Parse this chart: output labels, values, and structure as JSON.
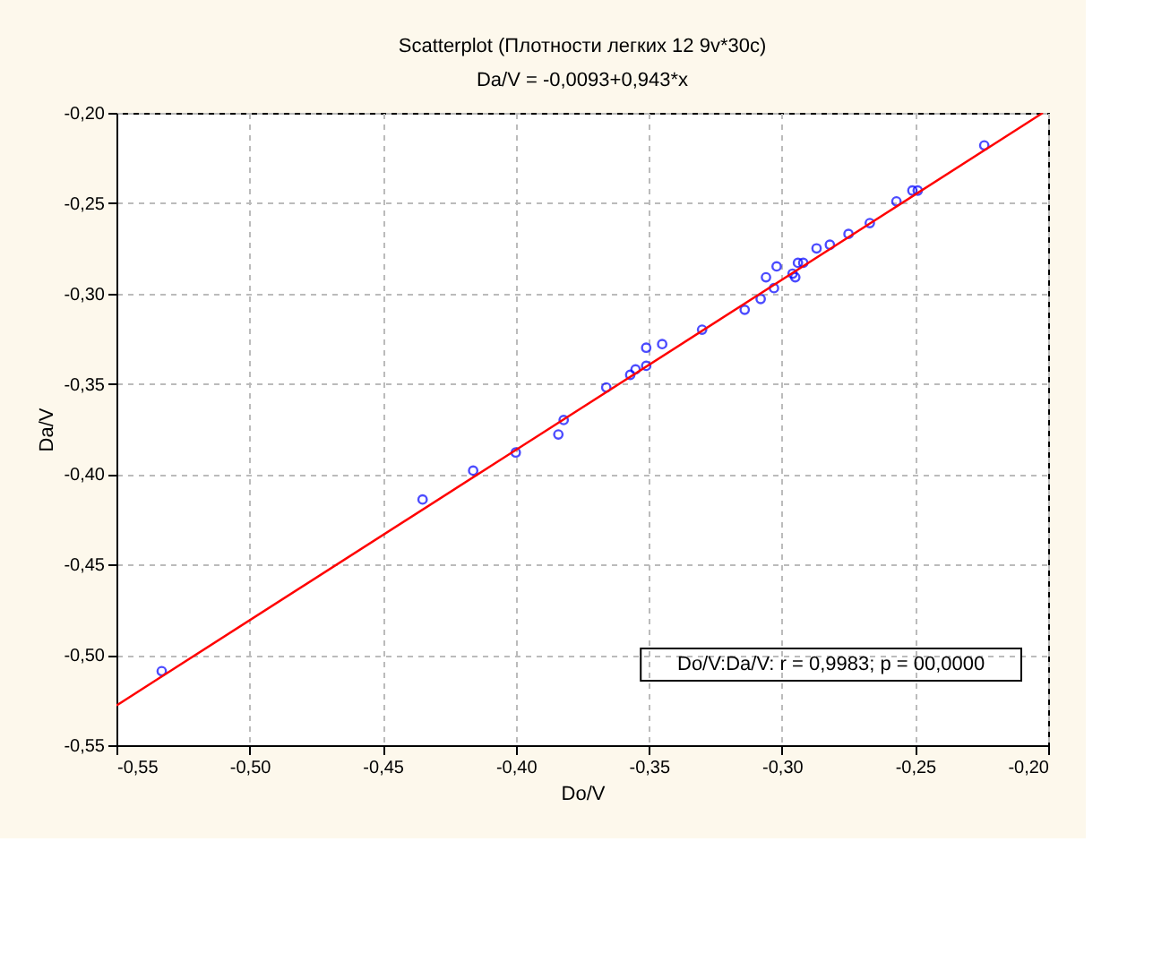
{
  "chart_data": {
    "type": "scatter",
    "title": "Scatterplot (Плотности легких 12 9v*30c)",
    "subtitle": "Da/V = -0,0093+0,943*x",
    "xlabel": "Do/V",
    "ylabel": "Da/V",
    "series": [
      {
        "color": "#0000ff",
        "marker": "circle",
        "x": [
          -0.224,
          -0.251,
          -0.249,
          -0.257,
          -0.267,
          -0.275,
          -0.282,
          -0.287,
          -0.292,
          -0.294,
          -0.296,
          -0.295,
          -0.302,
          -0.306,
          -0.303,
          -0.308,
          -0.314,
          -0.33,
          -0.345,
          -0.351,
          -0.351,
          -0.355,
          -0.357,
          -0.366,
          -0.382,
          -0.384,
          -0.4,
          -0.416,
          -0.435,
          -0.533
        ],
        "values": [
          -0.218,
          -0.243,
          -0.243,
          -0.249,
          -0.261,
          -0.267,
          -0.273,
          -0.275,
          -0.283,
          -0.283,
          -0.289,
          -0.291,
          -0.285,
          -0.291,
          -0.297,
          -0.303,
          -0.309,
          -0.32,
          -0.328,
          -0.33,
          -0.34,
          -0.342,
          -0.345,
          -0.352,
          -0.37,
          -0.378,
          -0.388,
          -0.398,
          -0.414,
          -0.509
        ]
      },
      {
        "type": "line",
        "color": "#ff0000",
        "line_style": "solid",
        "x": [
          -0.55,
          -0.202
        ],
        "values": [
          -0.528,
          -0.2
        ]
      }
    ],
    "xlim": [
      -0.55,
      -0.2
    ],
    "xticks": [
      {
        "value": -0.55,
        "label": "-0,55"
      },
      {
        "value": -0.5,
        "label": "-0,50"
      },
      {
        "value": -0.45,
        "label": "-0,45"
      },
      {
        "value": -0.4,
        "label": "-0,40"
      },
      {
        "value": -0.35,
        "label": "-0,35"
      },
      {
        "value": -0.3,
        "label": "-0,30"
      },
      {
        "value": -0.25,
        "label": "-0,25"
      },
      {
        "value": -0.2,
        "label": "-0,20"
      }
    ],
    "ylim": [
      -0.55,
      -0.2
    ],
    "yticks": [
      {
        "value": -0.55,
        "label": "-0,55"
      },
      {
        "value": -0.5,
        "label": "-0,50"
      },
      {
        "value": -0.45,
        "label": "-0,45"
      },
      {
        "value": -0.4,
        "label": "-0,40"
      },
      {
        "value": -0.35,
        "label": "-0,35"
      },
      {
        "value": -0.3,
        "label": "-0,30"
      },
      {
        "value": -0.25,
        "label": "-0,25"
      },
      {
        "value": -0.2,
        "label": "-0,20"
      }
    ],
    "grid": true,
    "legend": false,
    "annotations": [
      "Do/V:Da/V:    r = 0,9983; p = 00,0000"
    ]
  }
}
